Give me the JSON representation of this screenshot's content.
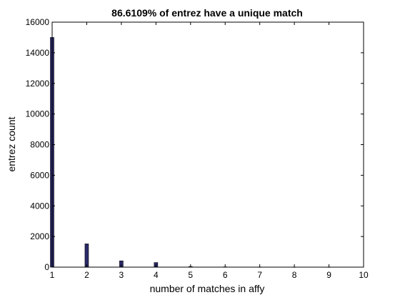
{
  "chart_data": {
    "type": "bar",
    "title": "86.6109% of entrez have a unique match",
    "xlabel": "number of matches in affy",
    "ylabel": "entrez count",
    "xlim": [
      1,
      10
    ],
    "ylim": [
      0,
      16000
    ],
    "xticks": [
      "1",
      "2",
      "3",
      "4",
      "5",
      "6",
      "7",
      "8",
      "9",
      "10"
    ],
    "yticks": [
      "0",
      "2000",
      "4000",
      "6000",
      "8000",
      "10000",
      "12000",
      "14000",
      "16000"
    ],
    "x": [
      1,
      2,
      3,
      4,
      5,
      6,
      7,
      8,
      9
    ],
    "values": [
      15000,
      1520,
      410,
      300,
      40,
      20,
      10,
      10,
      10
    ],
    "grid": false,
    "bar_color": "#2b2a6b"
  }
}
